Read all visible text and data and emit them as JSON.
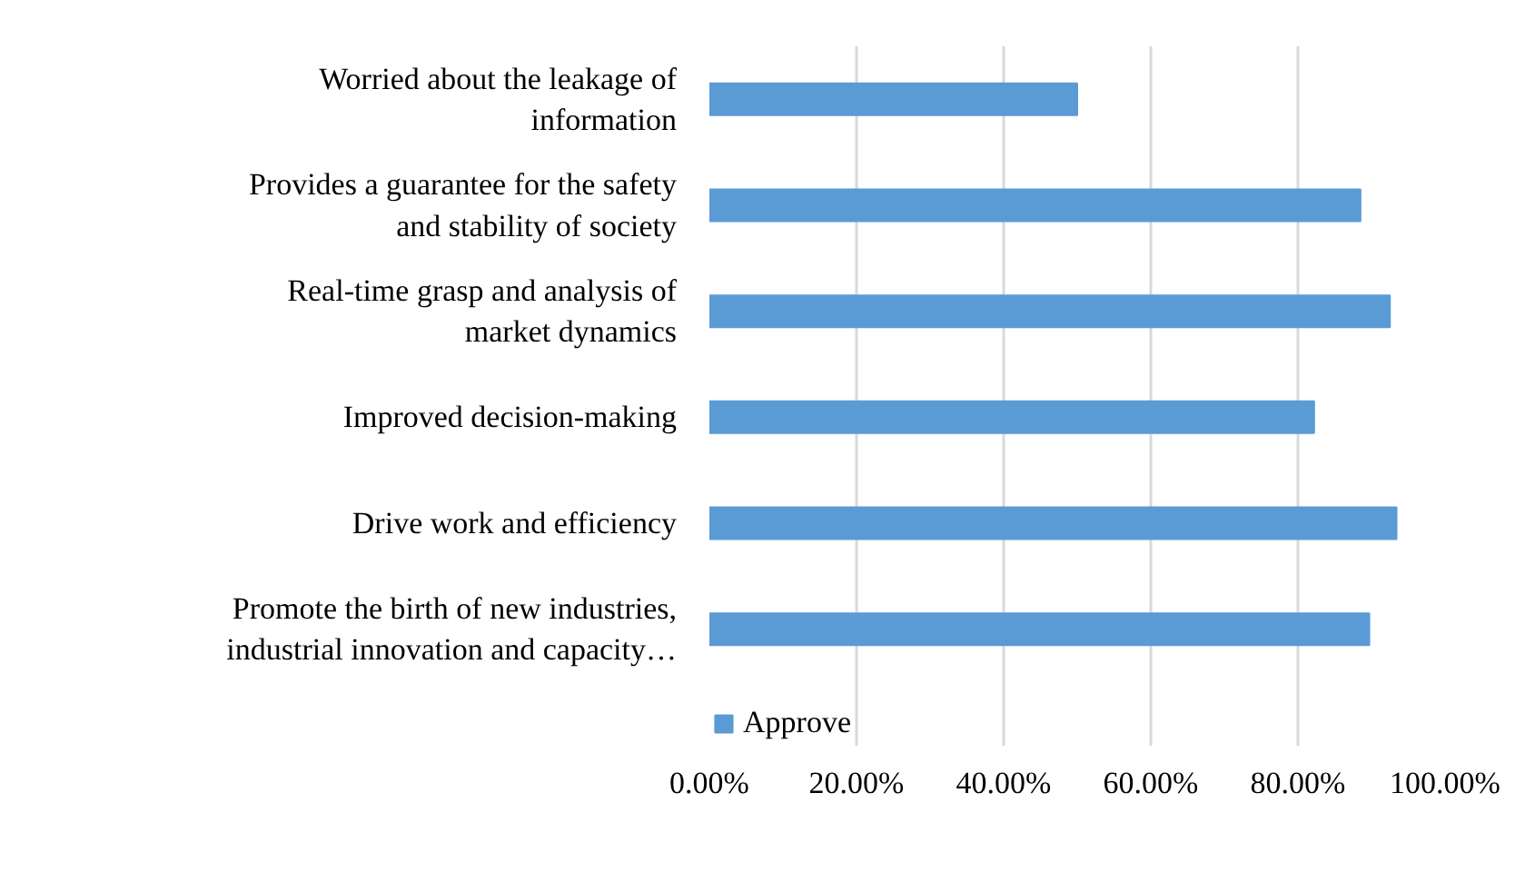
{
  "chart_data": {
    "type": "bar",
    "orientation": "horizontal",
    "categories": [
      "Worried about the leakage of information",
      "Provides a guarantee for the safety and stability of society",
      "Real-time grasp and analysis of market dynamics",
      "Improved decision-making",
      "Drive work and efficiency",
      "Promote the birth of new industries, industrial innovation and capacity…"
    ],
    "series": [
      {
        "name": "Approve",
        "color": "#5b9bd5",
        "values": [
          50.0,
          88.5,
          92.5,
          82.2,
          93.4,
          89.7
        ]
      }
    ],
    "xlim": [
      0,
      100
    ],
    "xticks": [
      {
        "value": 0,
        "label": "0.00%"
      },
      {
        "value": 20,
        "label": "20.00%"
      },
      {
        "value": 40,
        "label": "40.00%"
      },
      {
        "value": 60,
        "label": "60.00%"
      },
      {
        "value": 80,
        "label": "80.00%"
      },
      {
        "value": 100,
        "label": "100.00%"
      }
    ],
    "grid": "x",
    "legend": "bottom"
  }
}
